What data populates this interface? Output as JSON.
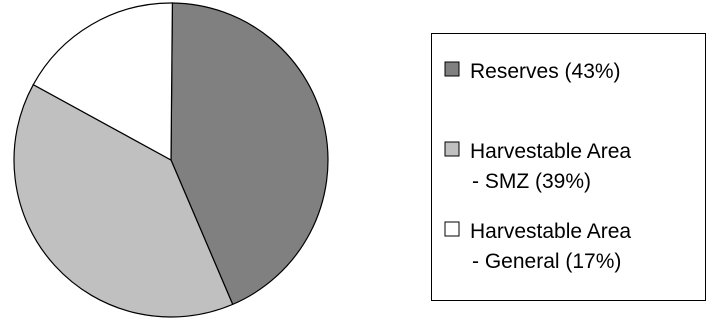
{
  "chart_data": {
    "type": "pie",
    "title": "",
    "slices": [
      {
        "label_lines": [
          "Reserves (43%)"
        ],
        "value": 43,
        "color": "#808080"
      },
      {
        "label_lines": [
          "Harvestable Area",
          "- SMZ (39%)"
        ],
        "value": 39,
        "color": "#c0c0c0"
      },
      {
        "label_lines": [
          "Harvestable Area",
          "- General (17%)"
        ],
        "value": 17,
        "color": "#ffffff"
      }
    ],
    "legend_position": "right"
  }
}
